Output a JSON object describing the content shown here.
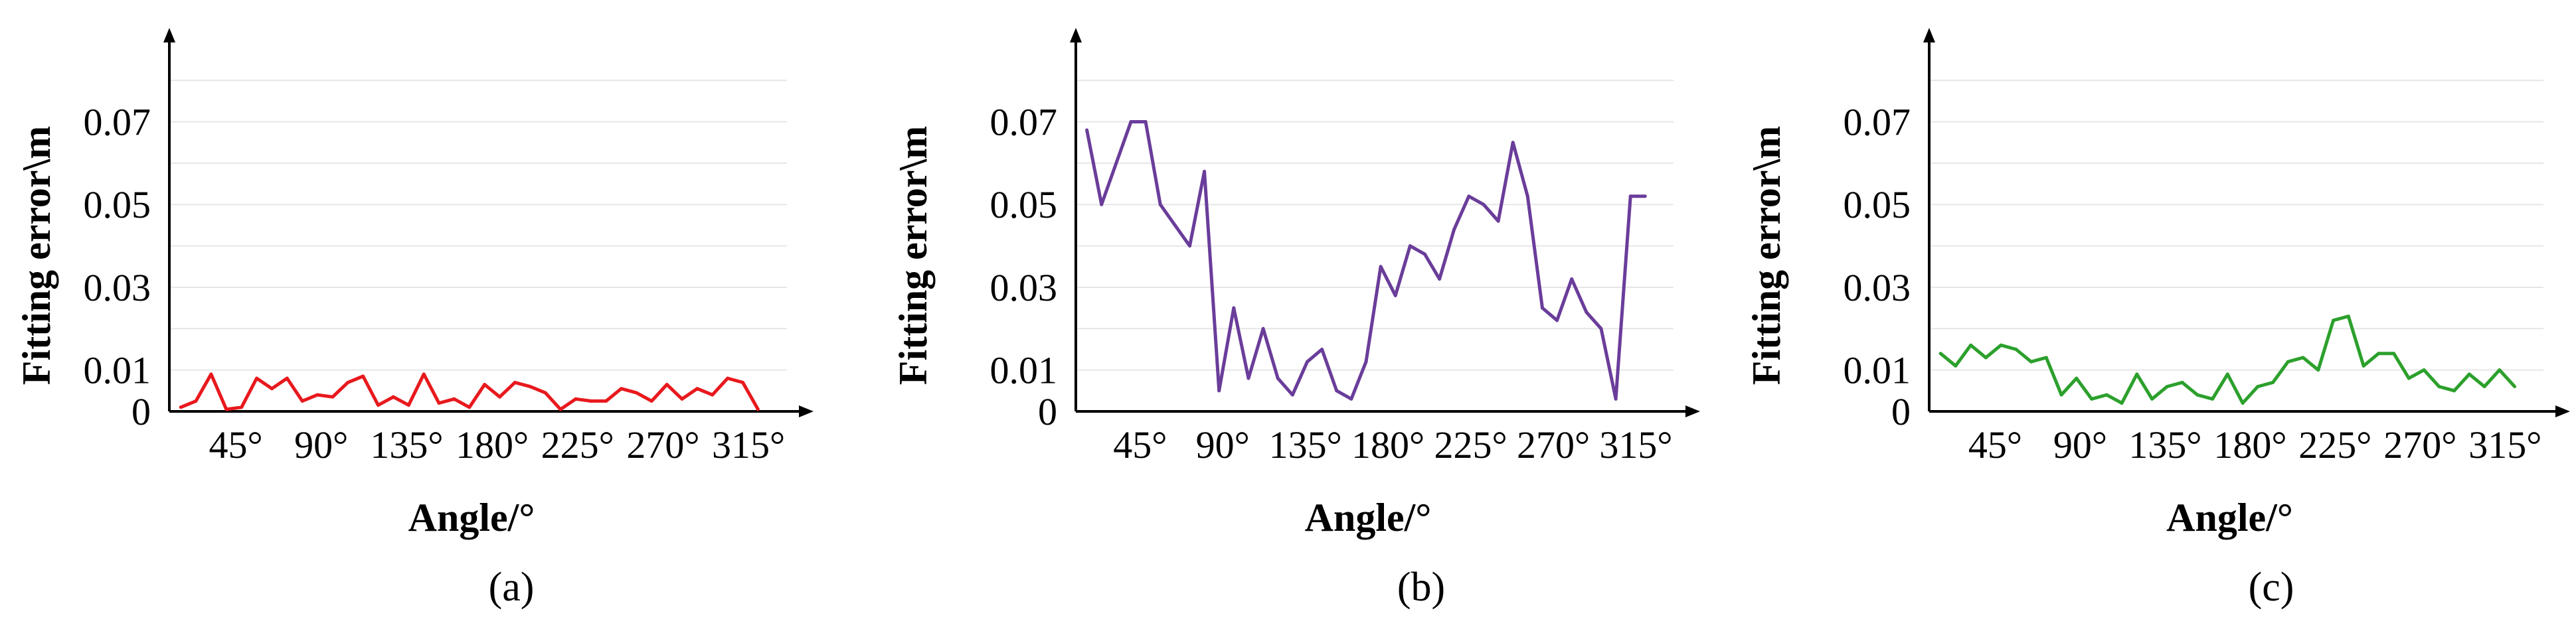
{
  "chart_data": [
    {
      "panel": "a",
      "caption": "(a)",
      "type": "line",
      "xlabel": "Angle/°",
      "ylabel": "Fitting error\\m",
      "xtick_labels": [
        "45°",
        "90°",
        "135°",
        "180°",
        "225°",
        "270°",
        "315°"
      ],
      "xtick_values": [
        45,
        90,
        135,
        180,
        225,
        270,
        315
      ],
      "ytick_labels": [
        "0",
        "0.01",
        "0.03",
        "0.05",
        "0.07"
      ],
      "ytick_values": [
        0,
        0.01,
        0.03,
        0.05,
        0.07
      ],
      "xlim": [
        10,
        330
      ],
      "ylim": [
        0,
        0.085
      ],
      "grid": "horizontal",
      "color": "#e8191d",
      "series": [
        {
          "x": [
            16,
            24,
            32,
            40,
            48,
            56,
            64,
            72,
            80,
            88,
            96,
            104,
            112,
            120,
            128,
            136,
            144,
            152,
            160,
            168,
            176,
            184,
            192,
            200,
            208,
            216,
            224,
            232,
            240,
            248,
            256,
            264,
            272,
            280,
            288,
            296,
            304,
            312,
            320
          ],
          "values": [
            0.001,
            0.0025,
            0.009,
            0.0005,
            0.001,
            0.008,
            0.0055,
            0.008,
            0.0025,
            0.004,
            0.0035,
            0.007,
            0.0085,
            0.0015,
            0.0035,
            0.0015,
            0.009,
            0.002,
            0.003,
            0.001,
            0.0065,
            0.0035,
            0.007,
            0.006,
            0.0045,
            0.0005,
            0.003,
            0.0025,
            0.0025,
            0.0055,
            0.0045,
            0.0025,
            0.0065,
            0.003,
            0.0055,
            0.004,
            0.008,
            0.007,
            0.0005
          ]
        }
      ]
    },
    {
      "panel": "b",
      "caption": "(b)",
      "type": "line",
      "xlabel": "Angle/°",
      "ylabel": "Fitting error\\m",
      "xtick_labels": [
        "45°",
        "90°",
        "135°",
        "180°",
        "225°",
        "270°",
        "315°"
      ],
      "xtick_values": [
        45,
        90,
        135,
        180,
        225,
        270,
        315
      ],
      "ytick_labels": [
        "0",
        "0.01",
        "0.03",
        "0.05",
        "0.07"
      ],
      "ytick_values": [
        0,
        0.01,
        0.03,
        0.05,
        0.07
      ],
      "xlim": [
        10,
        330
      ],
      "ylim": [
        0,
        0.085
      ],
      "grid": "horizontal",
      "color": "#6a3d9a",
      "series": [
        {
          "x": [
            16,
            24,
            32,
            40,
            48,
            56,
            64,
            72,
            80,
            88,
            96,
            104,
            112,
            120,
            128,
            136,
            144,
            152,
            160,
            168,
            176,
            184,
            192,
            200,
            208,
            216,
            224,
            232,
            240,
            248,
            256,
            264,
            272,
            280,
            288,
            296,
            304,
            312,
            320
          ],
          "values": [
            0.068,
            0.05,
            0.06,
            0.07,
            0.07,
            0.05,
            0.045,
            0.04,
            0.058,
            0.005,
            0.025,
            0.008,
            0.02,
            0.008,
            0.004,
            0.012,
            0.015,
            0.005,
            0.003,
            0.012,
            0.035,
            0.028,
            0.04,
            0.038,
            0.032,
            0.044,
            0.052,
            0.05,
            0.046,
            0.065,
            0.052,
            0.025,
            0.022,
            0.032,
            0.024,
            0.02,
            0.003,
            0.052,
            0.052
          ]
        }
      ]
    },
    {
      "panel": "c",
      "caption": "(c)",
      "type": "line",
      "xlabel": "Angle/°",
      "ylabel": "Fitting error\\m",
      "xtick_labels": [
        "45°",
        "90°",
        "135°",
        "180°",
        "225°",
        "270°",
        "315°"
      ],
      "xtick_values": [
        45,
        90,
        135,
        180,
        225,
        270,
        315
      ],
      "ytick_labels": [
        "0",
        "0.01",
        "0.03",
        "0.05",
        "0.07"
      ],
      "ytick_values": [
        0,
        0.01,
        0.03,
        0.05,
        0.07
      ],
      "xlim": [
        10,
        330
      ],
      "ylim": [
        0,
        0.085
      ],
      "grid": "horizontal",
      "color": "#2ca02c",
      "series": [
        {
          "x": [
            16,
            24,
            32,
            40,
            48,
            56,
            64,
            72,
            80,
            88,
            96,
            104,
            112,
            120,
            128,
            136,
            144,
            152,
            160,
            168,
            176,
            184,
            192,
            200,
            208,
            216,
            224,
            232,
            240,
            248,
            256,
            264,
            272,
            280,
            288,
            296,
            304,
            312,
            320
          ],
          "values": [
            0.014,
            0.011,
            0.016,
            0.013,
            0.016,
            0.015,
            0.012,
            0.013,
            0.004,
            0.008,
            0.003,
            0.004,
            0.002,
            0.009,
            0.003,
            0.006,
            0.007,
            0.004,
            0.003,
            0.009,
            0.002,
            0.006,
            0.007,
            0.012,
            0.013,
            0.01,
            0.022,
            0.023,
            0.011,
            0.014,
            0.014,
            0.008,
            0.01,
            0.006,
            0.005,
            0.009,
            0.006,
            0.01,
            0.006
          ]
        }
      ]
    }
  ]
}
